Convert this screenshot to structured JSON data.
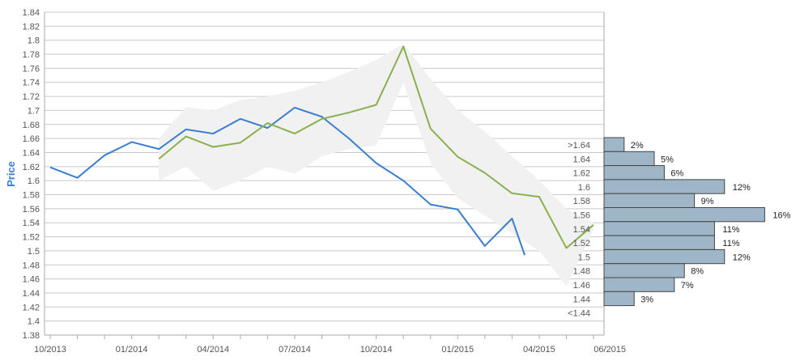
{
  "chart_data": {
    "type": "line",
    "ylabel": "Price",
    "ylim": [
      1.38,
      1.84
    ],
    "y_ticks": [
      "1.38",
      "1.4",
      "1.42",
      "1.44",
      "1.46",
      "1.48",
      "1.5",
      "1.52",
      "1.54",
      "1.56",
      "1.58",
      "1.6",
      "1.62",
      "1.64",
      "1.66",
      "1.68",
      "1.7",
      "1.72",
      "1.74",
      "1.76",
      "1.78",
      "1.8",
      "1.82",
      "1.84"
    ],
    "x_tick_labels": [
      "10/2013",
      "01/2014",
      "04/2014",
      "07/2014",
      "10/2014",
      "01/2015",
      "04/2015",
      "06/2015"
    ],
    "grid": true,
    "series": [
      {
        "color": "#3a7fcf",
        "x": [
          "2013-10",
          "2013-11",
          "2013-12",
          "2014-01",
          "2014-02",
          "2014-03",
          "2014-04",
          "2014-05",
          "2014-06",
          "2014-07",
          "2014-08",
          "2014-09",
          "2014-10",
          "2014-11",
          "2014-12",
          "2015-01",
          "2015-02",
          "2015-03",
          "2015-03-15"
        ],
        "values": [
          1.619,
          1.604,
          1.636,
          1.655,
          1.645,
          1.673,
          1.667,
          1.688,
          1.675,
          1.704,
          1.691,
          1.66,
          1.625,
          1.6,
          1.566,
          1.559,
          1.507,
          1.546,
          1.494
        ]
      },
      {
        "color": "#8ab04e",
        "x": [
          "2014-02",
          "2014-03",
          "2014-04",
          "2014-05",
          "2014-06",
          "2014-07",
          "2014-08",
          "2014-09",
          "2014-10",
          "2014-11",
          "2014-12",
          "2015-01",
          "2015-02",
          "2015-03",
          "2015-04",
          "2015-05",
          "2015-06"
        ],
        "values": [
          1.631,
          1.663,
          1.648,
          1.654,
          1.682,
          1.667,
          1.688,
          1.697,
          1.708,
          1.791,
          1.674,
          1.634,
          1.611,
          1.582,
          1.577,
          1.504,
          1.537
        ]
      }
    ],
    "band": {
      "color": "#f1f1f1",
      "x": [
        "2014-02",
        "2014-03",
        "2014-04",
        "2014-05",
        "2014-06",
        "2014-07",
        "2014-08",
        "2014-09",
        "2014-10",
        "2014-11",
        "2014-12",
        "2015-01",
        "2015-02",
        "2015-03",
        "2015-04",
        "2015-05",
        "2015-06"
      ],
      "upper": [
        1.66,
        1.705,
        1.7,
        1.715,
        1.72,
        1.728,
        1.74,
        1.755,
        1.772,
        1.795,
        1.745,
        1.7,
        1.67,
        1.635,
        1.6,
        1.56,
        1.54
      ],
      "lower": [
        1.6,
        1.62,
        1.585,
        1.6,
        1.62,
        1.61,
        1.635,
        1.645,
        1.65,
        1.74,
        1.625,
        1.575,
        1.55,
        1.525,
        1.5,
        1.45,
        1.53
      ]
    },
    "histogram": {
      "color": "#9fb6c8",
      "bins": [
        {
          "label": ">1.64",
          "value": 2,
          "text": "2%"
        },
        {
          "label": "1.64",
          "value": 5,
          "text": "5%"
        },
        {
          "label": "1.62",
          "value": 6,
          "text": "6%"
        },
        {
          "label": "1.6",
          "value": 12,
          "text": "12%"
        },
        {
          "label": "1.58",
          "value": 9,
          "text": "9%"
        },
        {
          "label": "1.56",
          "value": 16,
          "text": "16%"
        },
        {
          "label": "1.54",
          "value": 11,
          "text": "11%"
        },
        {
          "label": "1.52",
          "value": 11,
          "text": "11%"
        },
        {
          "label": "1.5",
          "value": 12,
          "text": "12%"
        },
        {
          "label": "1.48",
          "value": 8,
          "text": "8%"
        },
        {
          "label": "1.46",
          "value": 7,
          "text": "7%"
        },
        {
          "label": "1.44",
          "value": 3,
          "text": "3%"
        },
        {
          "label": "<1.44",
          "value": 0,
          "text": ""
        }
      ]
    }
  }
}
